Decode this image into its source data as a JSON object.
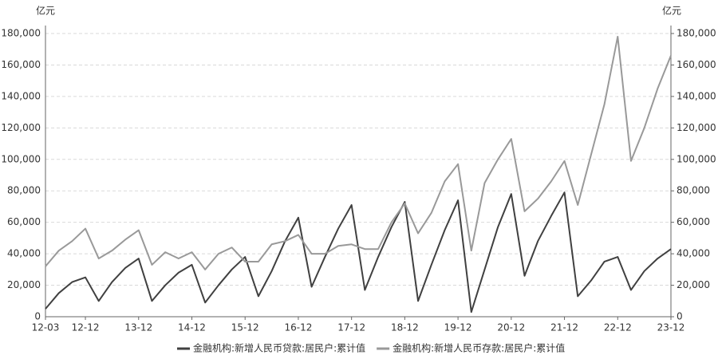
{
  "chart_data": {
    "type": "line",
    "y_label": "亿元",
    "y2_label": "亿元",
    "categories": [
      "12-03",
      null,
      null,
      "12-12",
      null,
      null,
      null,
      "13-12",
      null,
      null,
      null,
      "14-12",
      null,
      null,
      null,
      "15-12",
      null,
      null,
      null,
      "16-12",
      null,
      null,
      null,
      "17-12",
      null,
      null,
      null,
      "18-12",
      null,
      null,
      null,
      "19-12",
      null,
      null,
      null,
      "20-12",
      null,
      null,
      null,
      "21-12",
      null,
      null,
      null,
      "22-12",
      null,
      null,
      null,
      "23-12"
    ],
    "series": [
      {
        "name": "金融机构:新增人民币贷款:居民户:累计值",
        "color": "#404040",
        "values": [
          5000,
          15000,
          22000,
          25000,
          10000,
          22000,
          31000,
          37000,
          10000,
          20000,
          28000,
          33000,
          9000,
          20000,
          30000,
          38000,
          13000,
          29000,
          48000,
          63000,
          19000,
          38000,
          56000,
          71000,
          17000,
          38000,
          57000,
          73000,
          10000,
          33000,
          55000,
          74000,
          3000,
          30000,
          57000,
          78000,
          26000,
          48000,
          64000,
          79000,
          13000,
          23000,
          35000,
          38000,
          17000,
          29000,
          37000,
          43000
        ]
      },
      {
        "name": "金融机构:新增人民币存款:居民户:累计值",
        "color": "#999999",
        "axis": "y2",
        "values": [
          32000,
          42000,
          48000,
          56000,
          37000,
          42000,
          49000,
          55000,
          33000,
          41000,
          37000,
          41000,
          30000,
          40000,
          44000,
          35000,
          35000,
          46000,
          48000,
          52000,
          40000,
          40000,
          45000,
          46000,
          43000,
          43000,
          60000,
          72000,
          53000,
          66000,
          86000,
          97000,
          42000,
          85000,
          100000,
          113000,
          67000,
          75000,
          86000,
          99000,
          71000,
          103000,
          135000,
          178000,
          99000,
          120000,
          145000,
          166000
        ]
      }
    ],
    "ylim": [
      0,
      180000
    ],
    "yticks": [
      0,
      {
        "value": 20000,
        "label": "20,000"
      },
      {
        "value": 40000,
        "label": "40,000"
      },
      {
        "value": 60000,
        "label": "60,000"
      },
      {
        "value": 80000,
        "label": "80,000"
      },
      {
        "value": 100000,
        "label": "100,000"
      },
      {
        "value": 120000,
        "label": "120,000"
      },
      {
        "value": 140000,
        "label": "140,000"
      },
      {
        "value": 160000,
        "label": "160,000"
      },
      {
        "value": 180000,
        "label": "180,000"
      }
    ],
    "y2lim": [
      0,
      180000
    ],
    "y2ticks": [
      0,
      {
        "value": 20000,
        "label": "20,000"
      },
      {
        "value": 40000,
        "label": "40,000"
      },
      {
        "value": 60000,
        "label": "60,000"
      },
      {
        "value": 80000,
        "label": "80,000"
      },
      {
        "value": 100000,
        "label": "100,000"
      },
      {
        "value": 120000,
        "label": "120,000"
      },
      {
        "value": 140000,
        "label": "140,000"
      },
      {
        "value": 160000,
        "label": "160,000"
      },
      {
        "value": 180000,
        "label": "180,000"
      }
    ],
    "grid": true,
    "legend": "bottom"
  }
}
